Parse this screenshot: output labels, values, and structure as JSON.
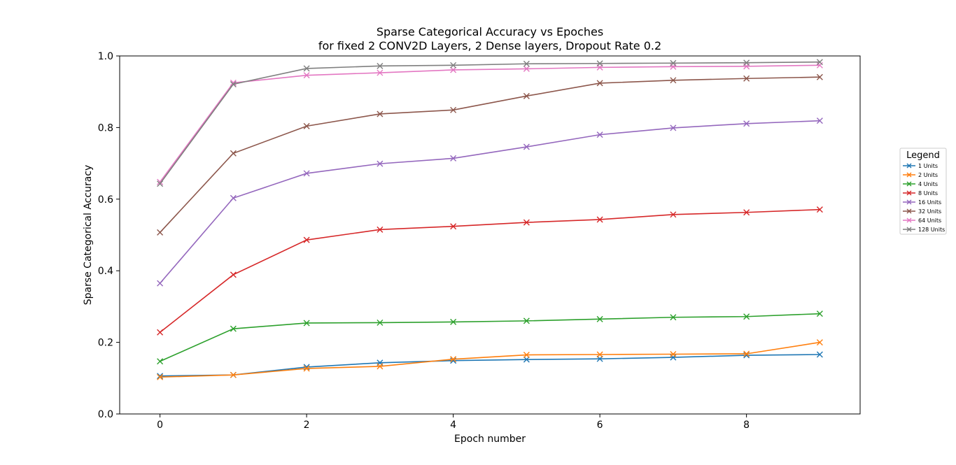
{
  "chart_data": {
    "type": "line",
    "title": "Sparse Categorical Accuracy vs Epoches",
    "subtitle": "for fixed 2 CONV2D Layers, 2 Dense layers, Dropout Rate 0.2",
    "xlabel": "Epoch number",
    "ylabel": "Sparse Categorical Accuracy",
    "xlim": [
      -0.55,
      9.55
    ],
    "ylim": [
      0.0,
      1.0
    ],
    "xticks": [
      0,
      2,
      4,
      6,
      8
    ],
    "yticks": [
      0.0,
      0.2,
      0.4,
      0.6,
      0.8,
      1.0
    ],
    "xtick_labels": [
      "0",
      "2",
      "4",
      "6",
      "8"
    ],
    "ytick_labels": [
      "0.0",
      "0.2",
      "0.4",
      "0.6",
      "0.8",
      "1.0"
    ],
    "grid": false,
    "marker": "x",
    "legend": {
      "title": "Legend",
      "placement": "outside-right"
    },
    "x": [
      0,
      1,
      2,
      3,
      4,
      5,
      6,
      7,
      8,
      9
    ],
    "series": [
      {
        "name": "1 Units",
        "color": "#1f77b4",
        "values": [
          0.106,
          0.109,
          0.131,
          0.143,
          0.149,
          0.152,
          0.154,
          0.158,
          0.164,
          0.166
        ]
      },
      {
        "name": "2 Units",
        "color": "#ff7f0e",
        "values": [
          0.103,
          0.109,
          0.127,
          0.133,
          0.153,
          0.165,
          0.166,
          0.167,
          0.168,
          0.2
        ]
      },
      {
        "name": "4 Units",
        "color": "#2ca02c",
        "values": [
          0.147,
          0.238,
          0.254,
          0.255,
          0.257,
          0.26,
          0.265,
          0.27,
          0.272,
          0.28
        ]
      },
      {
        "name": "8 Units",
        "color": "#d62728",
        "values": [
          0.228,
          0.389,
          0.486,
          0.515,
          0.524,
          0.535,
          0.543,
          0.557,
          0.563,
          0.571
        ]
      },
      {
        "name": "16 Units",
        "color": "#9467bd",
        "values": [
          0.365,
          0.603,
          0.672,
          0.699,
          0.714,
          0.746,
          0.78,
          0.799,
          0.811,
          0.819
        ]
      },
      {
        "name": "32 Units",
        "color": "#8c564b",
        "values": [
          0.507,
          0.728,
          0.804,
          0.838,
          0.849,
          0.888,
          0.924,
          0.932,
          0.937,
          0.941
        ]
      },
      {
        "name": "64 Units",
        "color": "#e377c2",
        "values": [
          0.648,
          0.925,
          0.946,
          0.953,
          0.961,
          0.964,
          0.968,
          0.97,
          0.971,
          0.974
        ]
      },
      {
        "name": "128 Units",
        "color": "#7f7f7f",
        "values": [
          0.643,
          0.921,
          0.965,
          0.972,
          0.974,
          0.978,
          0.979,
          0.98,
          0.981,
          0.983
        ]
      }
    ]
  }
}
